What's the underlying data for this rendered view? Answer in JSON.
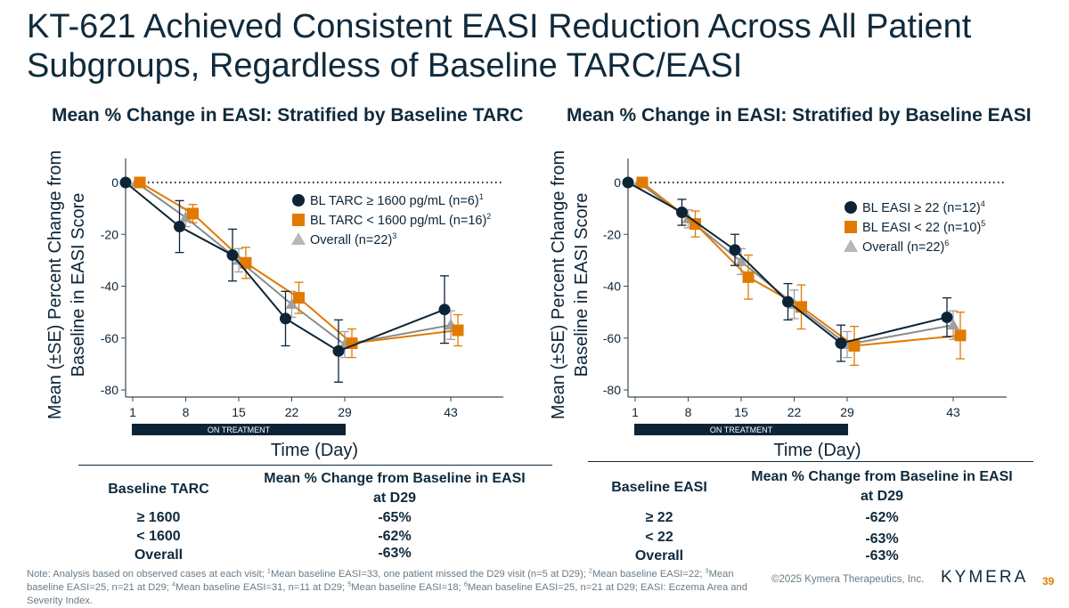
{
  "title": "KT-621 Achieved Consistent EASI Reduction Across All Patient Subgroups, Regardless of Baseline TARC/EASI",
  "colors": {
    "dark": "#0d2436",
    "orange": "#e07b00",
    "gray": "#a0a0a0",
    "title": "#0f2a3c"
  },
  "chart_data": [
    {
      "type": "line",
      "title": "Mean % Change in EASI: Stratified by Baseline TARC",
      "xlabel": "Time (Day)",
      "ylabel": "Mean (±SE) Percent Change from Baseline in EASI Score",
      "x": [
        1,
        8,
        15,
        22,
        29,
        43
      ],
      "x_ticks": [
        "1",
        "8",
        "15",
        "22",
        "29",
        "43"
      ],
      "y_ticks": [
        "0",
        "-20",
        "-40",
        "-60",
        "-80"
      ],
      "ylim": [
        -80,
        0
      ],
      "reference_line": 0,
      "treatment_label": "ON TREATMENT",
      "treatment_range": [
        1,
        29
      ],
      "legend_position": "top-right",
      "series": [
        {
          "name": "BL TARC ≥ 1600 pg/mL (n=6)",
          "sup": "1",
          "marker": "circle",
          "color": "#0d2436",
          "values": [
            0,
            -17,
            -28,
            -52.5,
            -65,
            -49
          ],
          "se": [
            0,
            10,
            10,
            10.5,
            12,
            13
          ]
        },
        {
          "name": "BL TARC < 1600 pg/mL (n=16)",
          "sup": "2",
          "marker": "square",
          "color": "#e07b00",
          "values": [
            0,
            -12,
            -31,
            -44.5,
            -62,
            -57
          ],
          "se": [
            0,
            3.5,
            6,
            6,
            5.5,
            6
          ]
        },
        {
          "name": "Overall (n=22)",
          "sup": "3",
          "marker": "triangle",
          "color": "#a0a0a0",
          "values": [
            0,
            -13.5,
            -30,
            -47,
            -62.5,
            -55
          ],
          "se": [
            0,
            3.5,
            4.5,
            5,
            5,
            5.5
          ]
        }
      ]
    },
    {
      "type": "line",
      "title": "Mean % Change in EASI: Stratified by Baseline EASI",
      "xlabel": "Time (Day)",
      "ylabel": "Mean (±SE) Percent Change from Baseline in EASI Score",
      "x": [
        1,
        8,
        15,
        22,
        29,
        43
      ],
      "x_ticks": [
        "1",
        "8",
        "15",
        "22",
        "29",
        "43"
      ],
      "y_ticks": [
        "0",
        "-20",
        "-40",
        "-60",
        "-80"
      ],
      "ylim": [
        -80,
        0
      ],
      "reference_line": 0,
      "treatment_label": "ON TREATMENT",
      "treatment_range": [
        1,
        29
      ],
      "legend_position": "top-right",
      "series": [
        {
          "name": "BL EASI ≥ 22 (n=12)",
          "sup": "4",
          "marker": "circle",
          "color": "#0d2436",
          "values": [
            0,
            -11.5,
            -26,
            -46,
            -62,
            -52
          ],
          "se": [
            0,
            5,
            6,
            7,
            7,
            7.5
          ]
        },
        {
          "name": "BL EASI < 22 (n=10)",
          "sup": "5",
          "marker": "square",
          "color": "#e07b00",
          "values": [
            0,
            -16,
            -36.5,
            -48,
            -63,
            -59
          ],
          "se": [
            0,
            5,
            8.5,
            8.5,
            7.5,
            9
          ]
        },
        {
          "name": "Overall (n=22)",
          "sup": "6",
          "marker": "triangle",
          "color": "#a0a0a0",
          "values": [
            0,
            -14,
            -30.5,
            -47,
            -62.5,
            -55
          ],
          "se": [
            0,
            3.5,
            5,
            5.5,
            5,
            5.5
          ]
        }
      ]
    }
  ],
  "tables": [
    {
      "col1": "Baseline TARC",
      "col2a": "Mean % Change from Baseline in EASI",
      "col2b": "at D29",
      "rows": [
        {
          "group": "≥ 1600",
          "value": "-65%"
        },
        {
          "group": "< 1600",
          "value": "-62%"
        },
        {
          "group": "Overall",
          "value": "-63%"
        }
      ]
    },
    {
      "col1": "Baseline EASI",
      "col2a": "Mean % Change from Baseline in EASI",
      "col2b": "at D29",
      "rows": [
        {
          "group": "≥ 22",
          "value": "-62%"
        },
        {
          "group": "< 22",
          "value": "-63%"
        },
        {
          "group": "Overall",
          "value": "-63%"
        }
      ]
    }
  ],
  "footer": {
    "note_parts": [
      "Note: Analysis based on observed cases at each visit; ",
      "1",
      "Mean baseline EASI=33, one patient missed the D29 visit (n=5 at D29); ",
      "2",
      "Mean baseline EASI=22; ",
      "3",
      "Mean baseline EASI=25, n=21 at D29; ",
      "4",
      "Mean baseline EASI=31, n=11 at D29; ",
      "5",
      "Mean baseline EASI=18; ",
      "6",
      "Mean baseline EASI=25, n=21 at D29; EASI: Eczema Area and Severity Index."
    ],
    "copyright": "©2025 Kymera Therapeutics, Inc.",
    "logo": "KYMERA",
    "page_number": "39"
  }
}
